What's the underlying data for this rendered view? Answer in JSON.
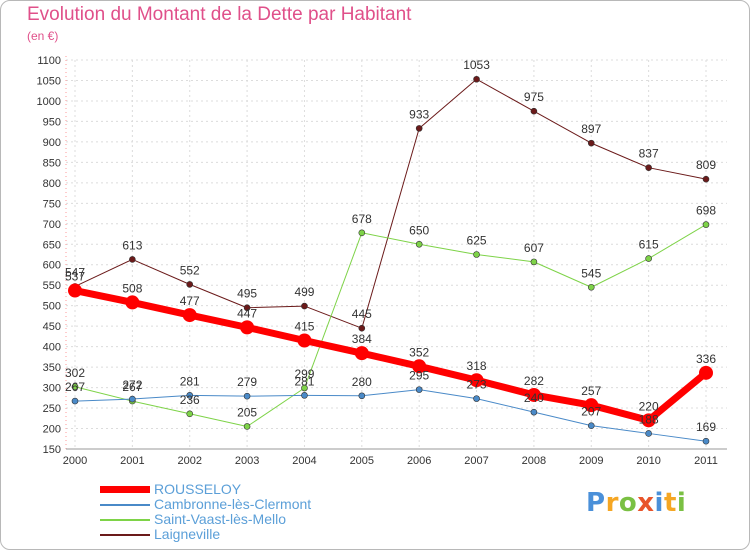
{
  "header": {
    "title": "Evolution du Montant de la Dette par Habitant",
    "subtitle": "(en €)"
  },
  "logo": {
    "text": "Proxiti",
    "letters": [
      "P",
      "r",
      "o",
      "x",
      "i",
      "t",
      "i"
    ],
    "colors": [
      "#4a90d9",
      "#f5a623",
      "#7ac043",
      "#e8542a",
      "#4a90d9",
      "#f5a623",
      "#7ac043"
    ]
  },
  "chart_data": {
    "type": "line",
    "title": "Evolution du Montant de la Dette par Habitant",
    "subtitle": "(en €)",
    "xlabel": "",
    "ylabel": "",
    "ylim": [
      150,
      1100
    ],
    "yticks": [
      150,
      200,
      250,
      300,
      350,
      400,
      450,
      500,
      550,
      600,
      650,
      700,
      750,
      800,
      850,
      900,
      950,
      1000,
      1050,
      1100
    ],
    "categories": [
      "2000",
      "2001",
      "2002",
      "2003",
      "2004",
      "2005",
      "2006",
      "2007",
      "2008",
      "2009",
      "2010",
      "2011"
    ],
    "grid": true,
    "legend_position": "bottom-left",
    "series": [
      {
        "name": "Laigneville",
        "color": "#6b1a1a",
        "width": 1,
        "labels": [
          "547",
          "613",
          "552",
          "495",
          "499",
          "445",
          "933",
          "1053",
          "975",
          "897",
          "837",
          "809"
        ],
        "values": [
          547,
          613,
          552,
          495,
          499,
          445,
          933,
          1053,
          975,
          897,
          837,
          809
        ]
      },
      {
        "name": "Saint-Vaast-lès-Mello",
        "color": "#7ed348",
        "width": 1,
        "labels": [
          "302",
          "267",
          "236",
          "205",
          "299",
          "678",
          "650",
          "625",
          "607",
          "545",
          "615",
          "698"
        ],
        "values": [
          302,
          267,
          236,
          205,
          299,
          678,
          650,
          625,
          607,
          545,
          615,
          698
        ]
      },
      {
        "name": "Cambronne-lès-Clermont",
        "color": "#4a8ac8",
        "width": 1,
        "labels": [
          "267",
          "272",
          "281",
          "279",
          "281",
          "280",
          "295",
          "273",
          "240",
          "207",
          "188",
          "169"
        ],
        "values": [
          267,
          272,
          281,
          279,
          281,
          280,
          295,
          273,
          240,
          207,
          188,
          169
        ]
      },
      {
        "name": "ROUSSELOY",
        "color": "#ff0000",
        "width": 7,
        "labels": [
          "537",
          "508",
          "477",
          "447",
          "415",
          "384",
          "352",
          "318",
          "282",
          "257",
          "220",
          "336"
        ],
        "values": [
          537,
          508,
          477,
          447,
          415,
          384,
          352,
          318,
          282,
          257,
          220,
          336
        ]
      }
    ]
  },
  "legend": [
    {
      "label": "ROUSSELOY",
      "color": "#ff0000",
      "thickness": 7
    },
    {
      "label": "Cambronne-lès-Clermont",
      "color": "#4a8ac8",
      "thickness": 2
    },
    {
      "label": "Saint-Vaast-lès-Mello",
      "color": "#7ed348",
      "thickness": 2
    },
    {
      "label": "Laigneville",
      "color": "#6b1a1a",
      "thickness": 2
    }
  ]
}
